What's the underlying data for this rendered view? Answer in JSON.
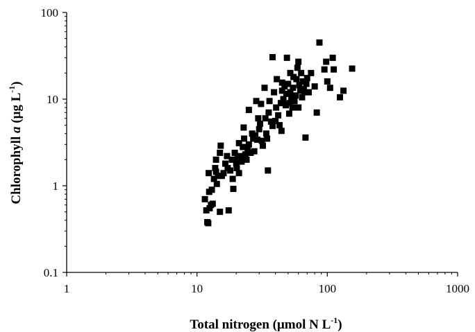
{
  "chart_data": {
    "type": "scatter",
    "title": "",
    "xlabel": {
      "main": "Total nitrogen (μmol N L",
      "sup": "-1",
      "close": ")"
    },
    "ylabel": {
      "pre": "Chlorophyll ",
      "italic": "a",
      "mid": "  (μg L",
      "sup": "-1",
      "close": ")"
    },
    "x_scale": "log",
    "y_scale": "log",
    "xlim": [
      1,
      1000
    ],
    "ylim": [
      0.1,
      100
    ],
    "x_ticks": [
      "1",
      "10",
      "100",
      "1000"
    ],
    "y_ticks": [
      "0.1",
      "1",
      "10",
      "100"
    ],
    "grid": false,
    "legend": "none",
    "marker": "square",
    "marker_color": "#000000",
    "points": [
      [
        11.5,
        0.7
      ],
      [
        11.8,
        0.52
      ],
      [
        12.0,
        0.38
      ],
      [
        12.2,
        0.37
      ],
      [
        12.5,
        0.55
      ],
      [
        12.8,
        0.6
      ],
      [
        12.4,
        0.85
      ],
      [
        12.3,
        1.4
      ],
      [
        13.0,
        0.9
      ],
      [
        13.2,
        0.62
      ],
      [
        13.5,
        1.2
      ],
      [
        13.8,
        1.6
      ],
      [
        14.0,
        1.45
      ],
      [
        14.2,
        1.05
      ],
      [
        14.5,
        1.3
      ],
      [
        14.0,
        2.0
      ],
      [
        15.0,
        2.4
      ],
      [
        15.2,
        2.9
      ],
      [
        15.5,
        1.3
      ],
      [
        15.0,
        0.5
      ],
      [
        16.0,
        1.4
      ],
      [
        16.5,
        1.8
      ],
      [
        17.0,
        2.2
      ],
      [
        17.2,
        1.6
      ],
      [
        17.5,
        0.52
      ],
      [
        18.0,
        1.5
      ],
      [
        18.5,
        2.0
      ],
      [
        18.8,
        1.2
      ],
      [
        19.0,
        0.92
      ],
      [
        19.5,
        2.4
      ],
      [
        20.0,
        1.8
      ],
      [
        20.2,
        1.6
      ],
      [
        20.5,
        2.1
      ],
      [
        21.0,
        3.1
      ],
      [
        21.0,
        1.4
      ],
      [
        21.5,
        2.2
      ],
      [
        22.0,
        1.9
      ],
      [
        22.5,
        2.8
      ],
      [
        22.8,
        4.7
      ],
      [
        23.0,
        3.5
      ],
      [
        23.5,
        2.3
      ],
      [
        24.0,
        2.0
      ],
      [
        24.5,
        2.6
      ],
      [
        25.0,
        3.0
      ],
      [
        25.0,
        7.5
      ],
      [
        25.8,
        2.4
      ],
      [
        26.5,
        4.0
      ],
      [
        27.0,
        3.5
      ],
      [
        27.5,
        2.5
      ],
      [
        28.0,
        3.8
      ],
      [
        28.5,
        9.5
      ],
      [
        29.0,
        3.4
      ],
      [
        29.5,
        6.0
      ],
      [
        30.0,
        4.5
      ],
      [
        30.5,
        5.2
      ],
      [
        31.0,
        8.8
      ],
      [
        31.5,
        3.3
      ],
      [
        32.0,
        2.9
      ],
      [
        33.0,
        13.5
      ],
      [
        33.5,
        6.0
      ],
      [
        34.0,
        4.0
      ],
      [
        34.5,
        3.5
      ],
      [
        35.0,
        1.5
      ],
      [
        35.5,
        7.0
      ],
      [
        36.0,
        9.5
      ],
      [
        37.0,
        5.5
      ],
      [
        38.0,
        4.9
      ],
      [
        39.0,
        12.0
      ],
      [
        40.0,
        5.6
      ],
      [
        40.5,
        8.0
      ],
      [
        41.0,
        17.0
      ],
      [
        42.0,
        6.5
      ],
      [
        43.0,
        5.0
      ],
      [
        44.0,
        9.0
      ],
      [
        44.5,
        4.3
      ],
      [
        45.0,
        12.5
      ],
      [
        46.0,
        10.0
      ],
      [
        47.0,
        14.0
      ],
      [
        48.0,
        8.5
      ],
      [
        48.5,
        11.5
      ],
      [
        49.0,
        30.0
      ],
      [
        50.0,
        15.0
      ],
      [
        51.0,
        6.8
      ],
      [
        51.5,
        9.0
      ],
      [
        52.0,
        12.0
      ],
      [
        53.0,
        10.5
      ],
      [
        54.0,
        8.0
      ],
      [
        54.5,
        13.5
      ],
      [
        55.0,
        18.0
      ],
      [
        56.0,
        9.5
      ],
      [
        57.0,
        11.0
      ],
      [
        58.0,
        17.0
      ],
      [
        59.0,
        23.0
      ],
      [
        60.0,
        8.0
      ],
      [
        61.0,
        14.5
      ],
      [
        62.0,
        12.5
      ],
      [
        63.0,
        20.0
      ],
      [
        64.0,
        10.5
      ],
      [
        65.0,
        16.0
      ],
      [
        66.0,
        13.0
      ],
      [
        67.0,
        12.0
      ],
      [
        68.0,
        3.6
      ],
      [
        69.0,
        15.0
      ],
      [
        70.0,
        17.5
      ],
      [
        72.0,
        12.0
      ],
      [
        75.0,
        20.0
      ],
      [
        80.0,
        14.0
      ],
      [
        83.0,
        7.0
      ],
      [
        87.0,
        45.0
      ],
      [
        95.0,
        22.0
      ],
      [
        98.0,
        27.0
      ],
      [
        100.0,
        16.0
      ],
      [
        105.0,
        13.5
      ],
      [
        110.0,
        30.0
      ],
      [
        112.0,
        22.0
      ],
      [
        125.0,
        10.5
      ],
      [
        133.0,
        12.5
      ],
      [
        155.0,
        22.5
      ],
      [
        60.0,
        27.0
      ],
      [
        45.0,
        15.5
      ],
      [
        52.0,
        20.0
      ],
      [
        38.0,
        30.5
      ]
    ]
  }
}
